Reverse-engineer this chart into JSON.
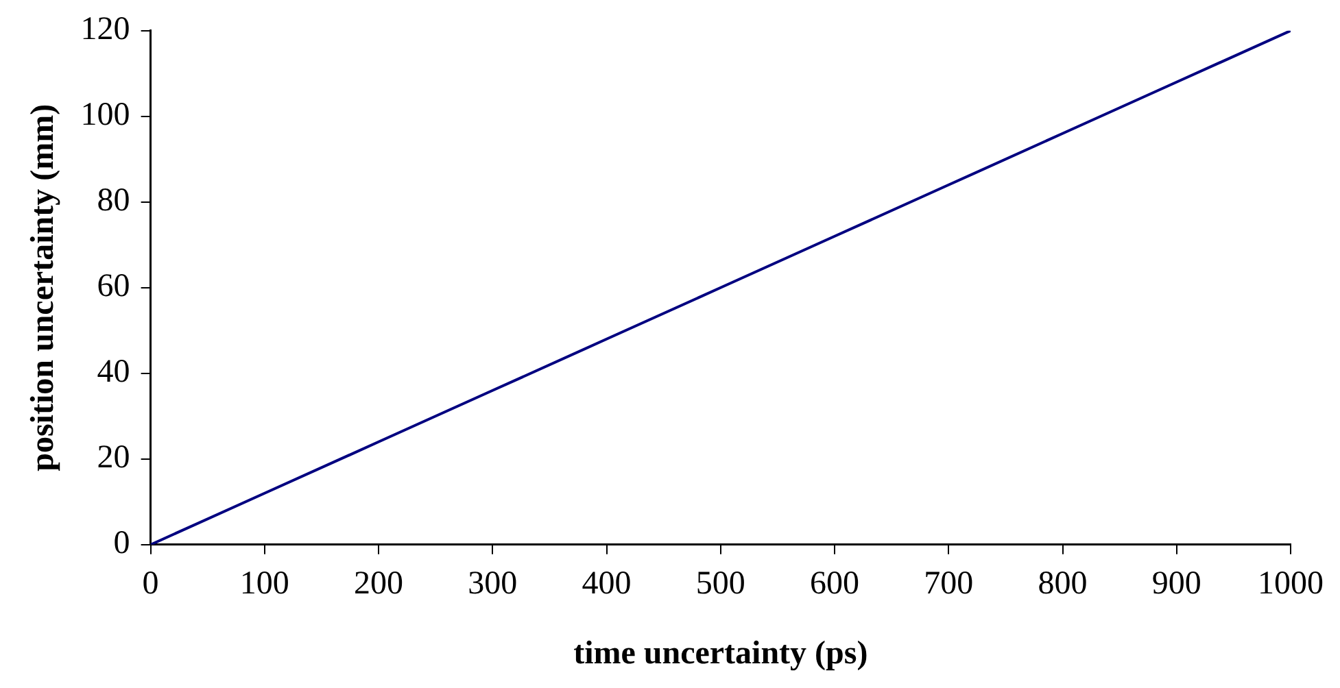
{
  "chart_data": {
    "type": "line",
    "xlabel": "time uncertainty (ps)",
    "ylabel": "position uncertainty (mm)",
    "x": [
      0,
      100,
      200,
      300,
      400,
      500,
      600,
      700,
      800,
      900,
      1000
    ],
    "series": [
      {
        "color": "#000080",
        "values": [
          0,
          12,
          24,
          36,
          48,
          60,
          72,
          84,
          96,
          108,
          120
        ]
      }
    ],
    "xlim": [
      0,
      1000
    ],
    "xticks": [
      0,
      100,
      200,
      300,
      400,
      500,
      600,
      700,
      800,
      900,
      1000
    ],
    "ylim": [
      0,
      120
    ],
    "yticks": [
      0,
      20,
      40,
      60,
      80,
      100,
      120
    ],
    "grid": false,
    "legend": false,
    "marker": "none",
    "line_style": "solid"
  }
}
